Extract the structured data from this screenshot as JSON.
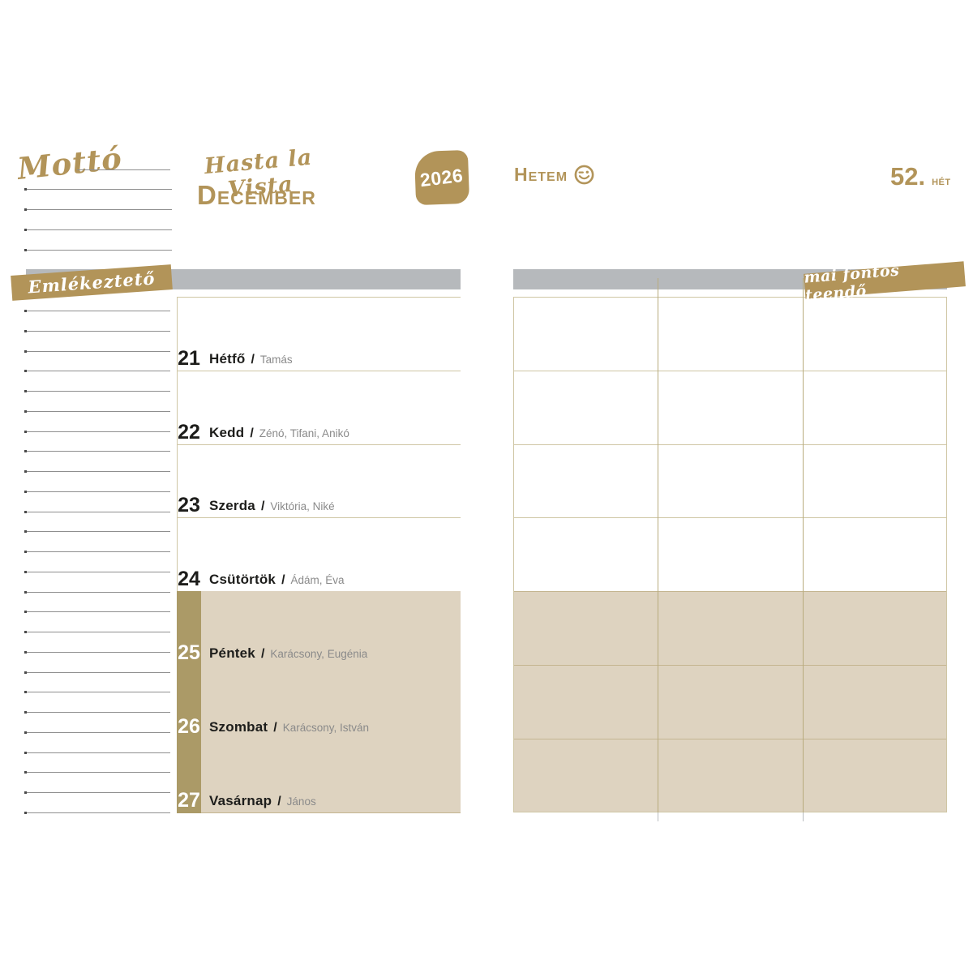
{
  "page": {
    "motto_label": "Mottó",
    "script_title": "Hasta la Vista",
    "month_title": "December",
    "year_badge": "2026",
    "hetem_label": "Hetem",
    "smiley_icon": "wink-smiley-icon",
    "week_number": "52.",
    "week_unit": "hét",
    "reminder_banner": "Emlékeztető",
    "todo_banner": "mai fontos teendő",
    "day_separator": "/"
  },
  "week": {
    "days": [
      {
        "num": "21",
        "name": "Hétfő",
        "namedays": "Tamás",
        "weekend": false
      },
      {
        "num": "22",
        "name": "Kedd",
        "namedays": "Zénó, Tifani, Anikó",
        "weekend": false
      },
      {
        "num": "23",
        "name": "Szerda",
        "namedays": "Viktória, Niké",
        "weekend": false
      },
      {
        "num": "24",
        "name": "Csütörtök",
        "namedays": "Ádám, Éva",
        "weekend": false
      },
      {
        "num": "25",
        "name": "Péntek",
        "namedays": "Karácsony, Eugénia",
        "weekend": true
      },
      {
        "num": "26",
        "name": "Szombat",
        "namedays": "Karácsony, István",
        "weekend": true
      },
      {
        "num": "27",
        "name": "Vasárnap",
        "namedays": "János",
        "weekend": true
      }
    ]
  },
  "colors": {
    "gold": "#b29459",
    "tan_fill": "#ded3c0",
    "weekend_stripe": "#ab9a67",
    "gray_bar": "#b6b9bc",
    "line_pale": "#cfc6a4",
    "line_dark": "#c4b590",
    "ruled_line": "#8f8f8f",
    "text_gray": "#8a8a8a",
    "text_black": "#1d1d1b"
  }
}
